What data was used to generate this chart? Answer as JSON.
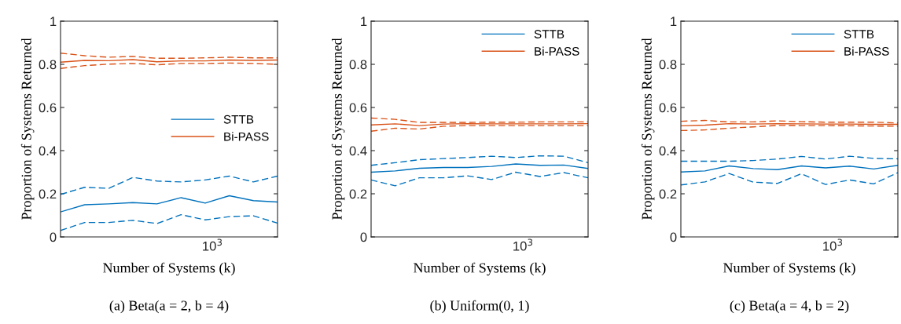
{
  "chart_data": [
    {
      "type": "line",
      "title": "(a) Beta(a = 2, b = 4)",
      "xlabel": "Number of Systems (k)",
      "ylabel": "Proportion of Systems Returned",
      "annotations": [
        "10$^{3}$"
      ],
      "ylim": [
        0,
        1
      ],
      "yticks": [
        0,
        0.2,
        0.4,
        0.6,
        0.8,
        1
      ],
      "legend": "center right",
      "marker": "none",
      "categories": [
        null,
        null,
        null,
        null,
        null,
        null,
        null,
        null,
        null,
        null
      ],
      "series": [
        {
          "name": "STTB",
          "color": "#0072bd",
          "line_style": "solid",
          "values": [
            0.116,
            0.149,
            0.153,
            0.159,
            0.153,
            0.182,
            0.157,
            0.191,
            0.168,
            0.162
          ]
        },
        {
          "name": "Bi-PASS",
          "color": "#d95319",
          "line_style": "solid",
          "values": [
            0.81,
            0.818,
            0.817,
            0.822,
            0.812,
            0.816,
            0.816,
            0.82,
            0.818,
            0.82
          ]
        },
        {
          "color": "#0072bd",
          "line_style": "dashed",
          "values": [
            0.197,
            0.23,
            0.225,
            0.276,
            0.259,
            0.255,
            0.264,
            0.282,
            0.255,
            0.282
          ]
        },
        {
          "color": "#0072bd",
          "line_style": "dashed",
          "values": [
            0.03,
            0.067,
            0.067,
            0.077,
            0.062,
            0.103,
            0.079,
            0.094,
            0.098,
            0.064
          ]
        },
        {
          "color": "#d95319",
          "line_style": "dashed",
          "values": [
            0.852,
            0.84,
            0.833,
            0.837,
            0.828,
            0.828,
            0.83,
            0.833,
            0.83,
            0.83
          ]
        },
        {
          "color": "#d95319",
          "line_style": "dashed",
          "values": [
            0.781,
            0.794,
            0.801,
            0.804,
            0.798,
            0.804,
            0.804,
            0.806,
            0.804,
            0.8
          ]
        }
      ]
    },
    {
      "type": "line",
      "title": "(b) Uniform(0, 1)",
      "xlabel": "Number of Systems (k)",
      "ylabel": "Proportion of Systems Returned",
      "annotations": [
        "10$^{3}$"
      ],
      "ylim": [
        0,
        1
      ],
      "yticks": [
        0,
        0.2,
        0.4,
        0.6,
        0.8,
        1
      ],
      "legend": "top right",
      "marker": "none",
      "categories": [
        null,
        null,
        null,
        null,
        null,
        null,
        null,
        null,
        null,
        null
      ],
      "series": [
        {
          "name": "STTB",
          "color": "#0072bd",
          "line_style": "solid",
          "values": [
            0.3,
            0.306,
            0.318,
            0.322,
            0.322,
            0.327,
            0.338,
            0.332,
            0.333,
            0.317
          ]
        },
        {
          "name": "Bi-PASS",
          "color": "#d95319",
          "line_style": "solid",
          "values": [
            0.519,
            0.524,
            0.516,
            0.523,
            0.525,
            0.524,
            0.524,
            0.524,
            0.524,
            0.525
          ]
        },
        {
          "color": "#0072bd",
          "line_style": "dashed",
          "values": [
            0.332,
            0.344,
            0.358,
            0.363,
            0.368,
            0.374,
            0.368,
            0.376,
            0.374,
            0.344
          ]
        },
        {
          "color": "#0072bd",
          "line_style": "dashed",
          "values": [
            0.264,
            0.237,
            0.274,
            0.274,
            0.283,
            0.266,
            0.3,
            0.28,
            0.298,
            0.274
          ]
        },
        {
          "color": "#d95319",
          "line_style": "dashed",
          "values": [
            0.551,
            0.545,
            0.531,
            0.531,
            0.531,
            0.532,
            0.532,
            0.533,
            0.533,
            0.533
          ]
        },
        {
          "color": "#d95319",
          "line_style": "dashed",
          "values": [
            0.49,
            0.504,
            0.5,
            0.513,
            0.516,
            0.516,
            0.516,
            0.516,
            0.516,
            0.516
          ]
        }
      ]
    },
    {
      "type": "line",
      "title": "(c) Beta(a = 4, b = 2)",
      "xlabel": "Number of Systems (k)",
      "ylabel": "Proportion of Systems Returned",
      "annotations": [
        "10$^{3}$"
      ],
      "ylim": [
        0,
        1
      ],
      "yticks": [
        0,
        0.2,
        0.4,
        0.6,
        0.8,
        1
      ],
      "legend": "top right",
      "marker": "none",
      "categories": [
        null,
        null,
        null,
        null,
        null,
        null,
        null,
        null,
        null,
        null
      ],
      "series": [
        {
          "name": "STTB",
          "color": "#0072bd",
          "line_style": "solid",
          "values": [
            0.301,
            0.306,
            0.329,
            0.317,
            0.312,
            0.329,
            0.32,
            0.328,
            0.315,
            0.332
          ]
        },
        {
          "name": "Bi-PASS",
          "color": "#d95319",
          "line_style": "solid",
          "values": [
            0.515,
            0.518,
            0.525,
            0.523,
            0.525,
            0.524,
            0.523,
            0.523,
            0.522,
            0.522
          ]
        },
        {
          "color": "#0072bd",
          "line_style": "dashed",
          "values": [
            0.351,
            0.351,
            0.351,
            0.354,
            0.361,
            0.373,
            0.361,
            0.374,
            0.364,
            0.362
          ]
        },
        {
          "color": "#0072bd",
          "line_style": "dashed",
          "values": [
            0.241,
            0.255,
            0.294,
            0.254,
            0.248,
            0.293,
            0.243,
            0.264,
            0.246,
            0.298
          ]
        },
        {
          "color": "#d95319",
          "line_style": "dashed",
          "values": [
            0.536,
            0.54,
            0.533,
            0.533,
            0.538,
            0.534,
            0.532,
            0.532,
            0.532,
            0.528
          ]
        },
        {
          "color": "#d95319",
          "line_style": "dashed",
          "values": [
            0.493,
            0.496,
            0.504,
            0.51,
            0.517,
            0.516,
            0.516,
            0.515,
            0.514,
            0.513
          ]
        }
      ]
    }
  ]
}
